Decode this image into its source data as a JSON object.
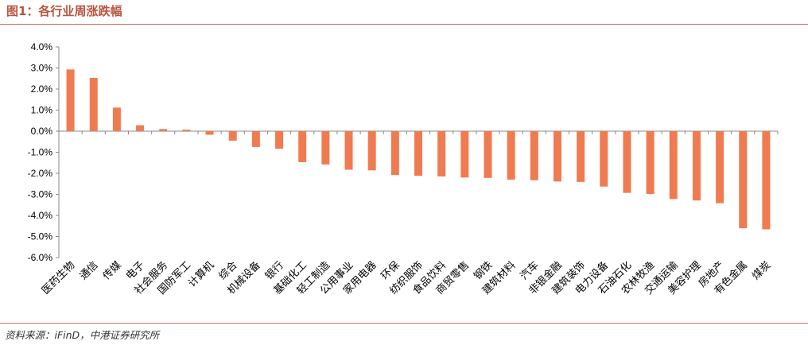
{
  "header": {
    "title": "图1：各行业周涨跌幅"
  },
  "footer": {
    "source": "资料来源：iFinD，中港证券研究所"
  },
  "colors": {
    "bar": "#f07b50",
    "accent": "#c0705e",
    "axis": "#888888"
  },
  "chart_data": {
    "type": "bar",
    "title": "",
    "xlabel": "",
    "ylabel": "",
    "ylim": [
      -6.0,
      4.0
    ],
    "yticks": [
      "4.0%",
      "3.0%",
      "2.0%",
      "1.0%",
      "0.0%",
      "-1.0%",
      "-2.0%",
      "-3.0%",
      "-4.0%",
      "-5.0%",
      "-6.0%"
    ],
    "grid": false,
    "legend": "none",
    "categories": [
      "医药生物",
      "通信",
      "传媒",
      "电子",
      "社会服务",
      "国防军工",
      "计算机",
      "综合",
      "机械设备",
      "银行",
      "基础化工",
      "轻工制造",
      "公用事业",
      "家用电器",
      "环保",
      "纺织服饰",
      "食品饮料",
      "商贸零售",
      "钢铁",
      "建筑材料",
      "汽车",
      "非银金融",
      "建筑装饰",
      "电力设备",
      "石油石化",
      "农林牧渔",
      "交通运输",
      "美容护理",
      "房地产",
      "有色金属",
      "煤炭"
    ],
    "values": [
      2.93,
      2.53,
      1.12,
      0.28,
      0.1,
      0.07,
      -0.17,
      -0.45,
      -0.75,
      -0.83,
      -1.47,
      -1.58,
      -1.83,
      -1.86,
      -2.08,
      -2.12,
      -2.15,
      -2.2,
      -2.22,
      -2.3,
      -2.33,
      -2.39,
      -2.41,
      -2.63,
      -2.93,
      -2.98,
      -3.22,
      -3.29,
      -3.42,
      -4.61,
      -4.66
    ]
  }
}
